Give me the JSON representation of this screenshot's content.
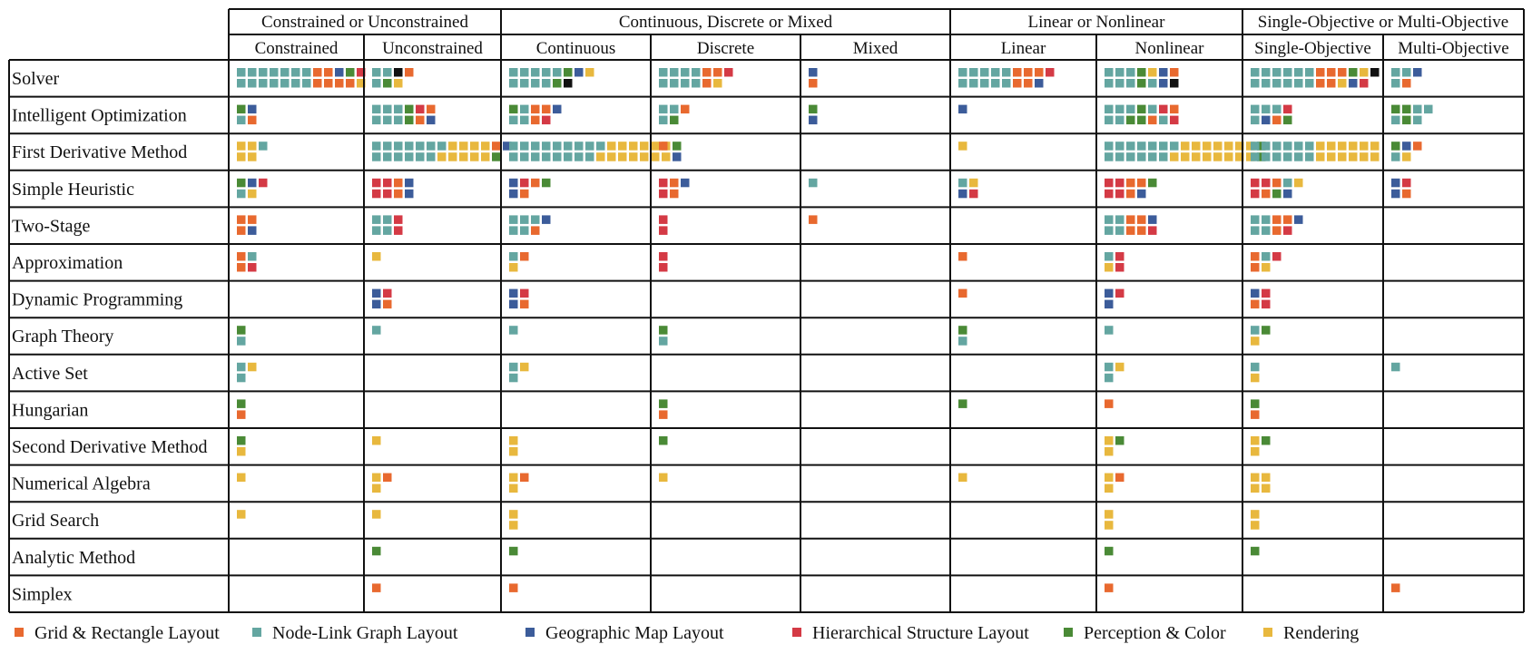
{
  "chart_data": {
    "type": "table",
    "group_headers": [
      "Constrained or Unconstrained",
      "Continuous, Discrete or Mixed",
      "Linear or Nonlinear",
      "Single-Objective or Multi-Objective"
    ],
    "columns": [
      "Constrained",
      "Unconstrained",
      "Continuous",
      "Discrete",
      "Mixed",
      "Linear",
      "Nonlinear",
      "Single-Objective",
      "Multi-Objective"
    ],
    "rows": [
      "Solver",
      "Intelligent Optimization",
      "First Derivative Method",
      "Simple Heuristic",
      "Two-Stage",
      "Approximation",
      "Dynamic Programming",
      "Graph Theory",
      "Active Set",
      "Hungarian",
      "Second Derivative Method",
      "Numerical Algebra",
      "Grid Search",
      "Analytic Method",
      "Simplex"
    ],
    "legend": [
      {
        "key": "O",
        "label": "Grid & Rectangle Layout",
        "color": "#E8692F"
      },
      {
        "key": "T",
        "label": "Node-Link Graph Layout",
        "color": "#64A6A1"
      },
      {
        "key": "B",
        "label": "Geographic Map Layout",
        "color": "#3C5C9A"
      },
      {
        "key": "R",
        "label": "Hierarchical Structure Layout",
        "color": "#D43A45"
      },
      {
        "key": "G",
        "label": "Perception & Color",
        "color": "#4A8A36"
      },
      {
        "key": "Y",
        "label": "Rendering",
        "color": "#E8B83E"
      }
    ],
    "extra_colors": {
      "K": "#111111"
    },
    "cells": [
      [
        [
          "TTTTTTTOOBGR",
          "TTTTTTTOOOOY"
        ],
        [
          "TTKO",
          "TGY"
        ],
        [
          "TTTTTGBY",
          "TTTTGK"
        ],
        [
          "TTTTOOR",
          "TTTTOY"
        ],
        [
          "B",
          "O"
        ],
        [
          "TTTTTOOOR",
          "TTTTTOOB"
        ],
        [
          "TTTGYBO",
          "TTTGTBK"
        ],
        [
          "TTTTTTOOOGYK",
          "TTTTTTOOYBR"
        ],
        [
          "TTB",
          "TO"
        ]
      ],
      [
        [
          "GB",
          "TO"
        ],
        [
          "TTTGRO",
          "TTTGOB"
        ],
        [
          "GTOOB",
          "TTOR"
        ],
        [
          "TTO",
          "TG"
        ],
        [
          "G",
          "B"
        ],
        [
          "B",
          ""
        ],
        [
          "TTTGTRO",
          "TTGGOTR"
        ],
        [
          "TTTR",
          "TBOG"
        ],
        [
          "GGTT",
          "TGT"
        ]
      ],
      [
        [
          "YYT",
          "YY"
        ],
        [
          "TTTTTTTYYYYOB",
          "TTTTTTYYYYYG"
        ],
        [
          "TTTTTTTTTYYYYYYG",
          "TTTTTTTTYYYYYYYB"
        ],
        [
          "O",
          ""
        ],
        [
          "",
          ""
        ],
        [
          "Y",
          ""
        ],
        [
          "TTTTTTTYYYYYYYG",
          "TTTTTTYYYYYYYYG"
        ],
        [
          "TTTTTTYYYYYY",
          "TTTTTTYYYYYY"
        ],
        [
          "GBO",
          "TY"
        ]
      ],
      [
        [
          "GBR",
          "TY"
        ],
        [
          "RROB",
          "RROB"
        ],
        [
          "BROG",
          "BO"
        ],
        [
          "ROB",
          "RO"
        ],
        [
          "T",
          ""
        ],
        [
          "TY",
          "BR"
        ],
        [
          "RROOG",
          "RROB"
        ],
        [
          "RROTY",
          "ROGB"
        ],
        [
          "BR",
          "BO"
        ]
      ],
      [
        [
          "OO",
          "OB"
        ],
        [
          "TTR",
          "TTR"
        ],
        [
          "TTTB",
          "TTO"
        ],
        [
          "R",
          "R"
        ],
        [
          "O",
          ""
        ],
        [
          "",
          ""
        ],
        [
          "TTOOB",
          "TTOOR"
        ],
        [
          "TTOOB",
          "TTOR"
        ],
        [
          "",
          ""
        ]
      ],
      [
        [
          "OT",
          "OR"
        ],
        [
          "Y",
          ""
        ],
        [
          "TO",
          "Y"
        ],
        [
          "R",
          "R"
        ],
        [
          "",
          ""
        ],
        [
          "O",
          ""
        ],
        [
          "TR",
          "YR"
        ],
        [
          "OTR",
          "OY"
        ],
        [
          "",
          ""
        ]
      ],
      [
        [
          "",
          ""
        ],
        [
          "BR",
          "BO"
        ],
        [
          "BR",
          "BO"
        ],
        [
          "",
          ""
        ],
        [
          "",
          ""
        ],
        [
          "O",
          ""
        ],
        [
          "BR",
          "B"
        ],
        [
          "BR",
          "OR"
        ],
        [
          "",
          ""
        ]
      ],
      [
        [
          "G",
          "T"
        ],
        [
          "T",
          ""
        ],
        [
          "T",
          ""
        ],
        [
          "G",
          "T"
        ],
        [
          "",
          ""
        ],
        [
          "G",
          "T"
        ],
        [
          "T",
          ""
        ],
        [
          "TG",
          "Y"
        ],
        [
          "",
          ""
        ]
      ],
      [
        [
          "TY",
          "T"
        ],
        [
          "",
          ""
        ],
        [
          "TY",
          "T"
        ],
        [
          "",
          ""
        ],
        [
          "",
          ""
        ],
        [
          "",
          ""
        ],
        [
          "TY",
          "T"
        ],
        [
          "T",
          "Y"
        ],
        [
          "T",
          ""
        ]
      ],
      [
        [
          "G",
          "O"
        ],
        [
          "",
          ""
        ],
        [
          "",
          ""
        ],
        [
          "G",
          "O"
        ],
        [
          "",
          ""
        ],
        [
          "G",
          ""
        ],
        [
          "O",
          ""
        ],
        [
          "G",
          "O"
        ],
        [
          "",
          ""
        ]
      ],
      [
        [
          "G",
          "Y"
        ],
        [
          "Y",
          ""
        ],
        [
          "Y",
          "Y"
        ],
        [
          "G",
          ""
        ],
        [
          "",
          ""
        ],
        [
          "",
          ""
        ],
        [
          "YG",
          "Y"
        ],
        [
          "YG",
          "Y"
        ],
        [
          "",
          ""
        ]
      ],
      [
        [
          "Y",
          ""
        ],
        [
          "YO",
          "Y"
        ],
        [
          "YO",
          "Y"
        ],
        [
          "Y",
          ""
        ],
        [
          "",
          ""
        ],
        [
          "Y",
          ""
        ],
        [
          "YO",
          "Y"
        ],
        [
          "YY",
          "YY"
        ],
        [
          "",
          ""
        ]
      ],
      [
        [
          "Y",
          ""
        ],
        [
          "Y",
          ""
        ],
        [
          "Y",
          "Y"
        ],
        [
          "",
          ""
        ],
        [
          "",
          ""
        ],
        [
          "",
          ""
        ],
        [
          "Y",
          "Y"
        ],
        [
          "Y",
          "Y"
        ],
        [
          "",
          ""
        ]
      ],
      [
        [
          "",
          ""
        ],
        [
          "G",
          ""
        ],
        [
          "G",
          ""
        ],
        [
          "",
          ""
        ],
        [
          "",
          ""
        ],
        [
          "",
          ""
        ],
        [
          "G",
          ""
        ],
        [
          "G",
          ""
        ],
        [
          "",
          ""
        ]
      ],
      [
        [
          "",
          ""
        ],
        [
          "O",
          ""
        ],
        [
          "O",
          ""
        ],
        [
          "",
          ""
        ],
        [
          "",
          ""
        ],
        [
          "",
          ""
        ],
        [
          "O",
          ""
        ],
        [
          "",
          ""
        ],
        [
          "O",
          " "
        ]
      ]
    ]
  }
}
